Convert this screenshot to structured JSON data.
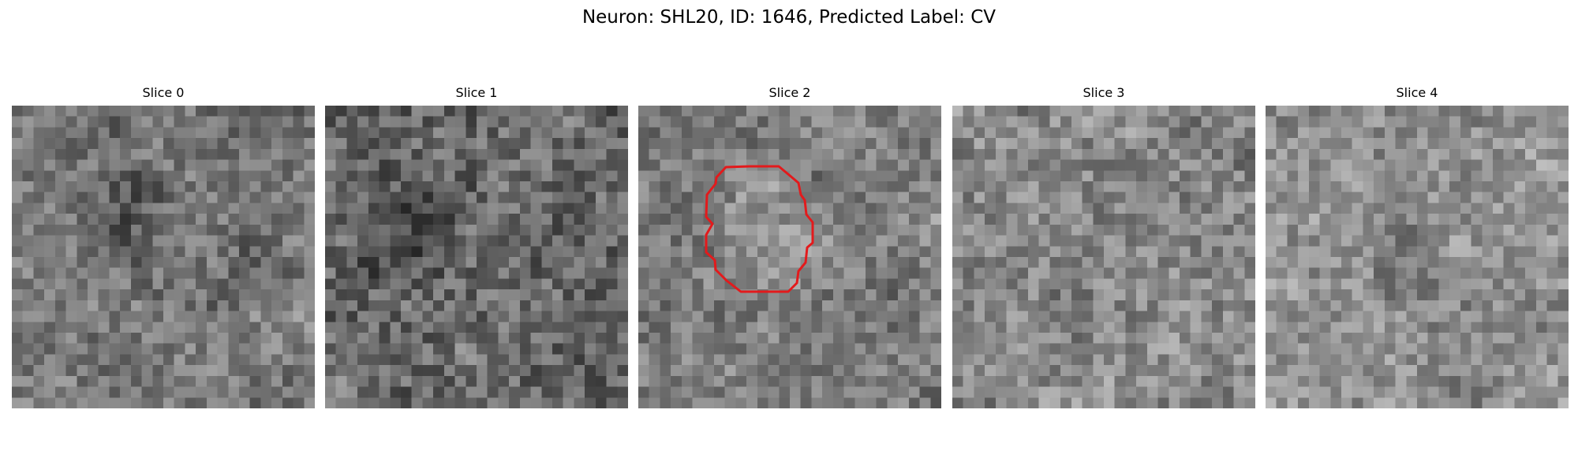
{
  "figure": {
    "title": "Neuron: SHL20, ID: 1646, Predicted Label: CV"
  },
  "slices": [
    {
      "title": "Slice 0"
    },
    {
      "title": "Slice 1"
    },
    {
      "title": "Slice 2"
    },
    {
      "title": "Slice 3"
    },
    {
      "title": "Slice 4"
    }
  ],
  "grid_size": 28,
  "contour": {
    "slice": 2,
    "color": "#e31a1c"
  },
  "colormap": "gray"
}
